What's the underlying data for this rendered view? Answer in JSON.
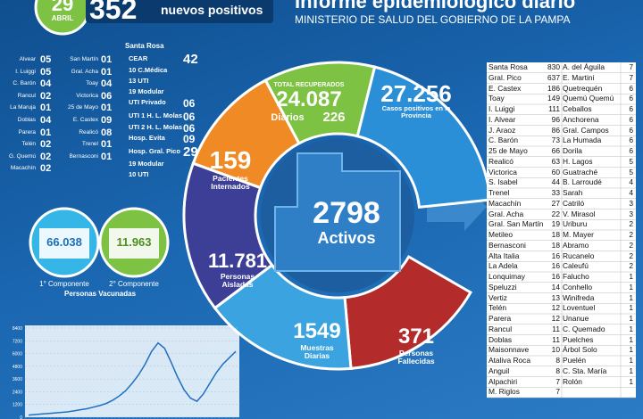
{
  "header": {
    "day": "29",
    "month": "ABRIL",
    "new_cases": "352",
    "new_cases_label": "nuevos positivos",
    "title": "Informe epidemiológico diario",
    "subtitle": "MINISTERIO DE SALUD DEL GOBIERNO DE LA PAMPA"
  },
  "localities": {
    "col1": [
      [
        "Alvear",
        "05"
      ],
      [
        "I. Luiggi",
        "05"
      ],
      [
        "C. Barón",
        "04"
      ],
      [
        "Rancul",
        "02"
      ],
      [
        "La Maruja",
        "01"
      ],
      [
        "Doblas",
        "04"
      ],
      [
        "Parera",
        "01"
      ],
      [
        "Telén",
        "02"
      ],
      [
        "G. Quemú",
        "02"
      ],
      [
        "Macachín",
        "02"
      ]
    ],
    "col2": [
      [
        "San Martín",
        "01"
      ],
      [
        "Gral. Acha",
        "01"
      ],
      [
        "Toay",
        "04"
      ],
      [
        "Victorica",
        "06"
      ],
      [
        "25 de Mayo",
        "01"
      ],
      [
        "E. Castex",
        "09"
      ],
      [
        "Realicó",
        "08"
      ],
      [
        "Trenel",
        "01"
      ],
      [
        "Bernasconi",
        "01"
      ]
    ]
  },
  "hospitals": {
    "title": "Santa Rosa",
    "rows": [
      {
        "label": "CEAR",
        "value": "42"
      },
      {
        "label": "10 C.Médica"
      },
      {
        "label": "13 UTI"
      },
      {
        "label": "19 Modular"
      },
      {
        "label": "UTI Privado",
        "value": "06"
      },
      {
        "label": "UTI 1 H. L. Molas",
        "value": "06"
      },
      {
        "label": "UTI 2 H. L. Molas",
        "value": "06"
      },
      {
        "label": "Hosp. Evita",
        "value": "09"
      },
      {
        "label": "Hosp. Gral. Pico",
        "value": "29"
      },
      {
        "label": "19 Modular"
      },
      {
        "label": "10 UTI"
      }
    ]
  },
  "summary": {
    "recovered_label": "TOTAL RECUPERADOS",
    "recovered": "24.087",
    "daily_label": "Diarios",
    "daily_recovered": "226",
    "cases": "27.256",
    "cases_label": "Casos positivos en la Provincia",
    "hospitalized": "159",
    "hospitalized_label": "Pacientes Internados",
    "isolated": "11.781",
    "isolated_label": "Personas Aisladas",
    "samples": "1549",
    "samples_label": "Muestras Diarias",
    "deaths": "371",
    "deaths_label": "Personas Fallecidas",
    "active": "2798",
    "active_label": "Activos"
  },
  "vaccination": {
    "first": "66.038",
    "first_label": "1° Componente",
    "second": "11.963",
    "second_label": "2° Componente",
    "label": "Personas Vacunadas"
  },
  "table": {
    "left": [
      [
        "Santa Rosa",
        830
      ],
      [
        "Gral. Pico",
        637
      ],
      [
        "E. Castex",
        186
      ],
      [
        "Toay",
        149
      ],
      [
        "I. Luiggi",
        111
      ],
      [
        "I. Alvear",
        96
      ],
      [
        "J. Araoz",
        86
      ],
      [
        "C. Barón",
        73
      ],
      [
        "25 de Mayo",
        66
      ],
      [
        "Realicó",
        63
      ],
      [
        "Victorica",
        60
      ],
      [
        "S. Isabel",
        44
      ],
      [
        "Trenel",
        33
      ],
      [
        "Macachín",
        27
      ],
      [
        "Gral. Acha",
        22
      ],
      [
        "Gral. San Martín",
        19
      ],
      [
        "Metileo",
        18
      ],
      [
        "Bernasconi",
        18
      ],
      [
        "Alta Italia",
        16
      ],
      [
        "La Adela",
        16
      ],
      [
        "Lonquimay",
        16
      ],
      [
        "Speluzzi",
        14
      ],
      [
        "Vertiz",
        13
      ],
      [
        "Telén",
        12
      ],
      [
        "Parera",
        12
      ],
      [
        "Rancul",
        11
      ],
      [
        "Doblas",
        11
      ],
      [
        "Maisonnave",
        10
      ],
      [
        "Ataliva Roca",
        8
      ],
      [
        "Anguil",
        8
      ],
      [
        "Alpachiri",
        7
      ],
      [
        "M. Riglos",
        7
      ]
    ],
    "right": [
      [
        "A. del Águila",
        7
      ],
      [
        "E. Martini",
        7
      ],
      [
        "Quetrequén",
        6
      ],
      [
        "Quemú Quemú",
        6
      ],
      [
        "Ceballos",
        6
      ],
      [
        "Anchorena",
        6
      ],
      [
        "Gral. Campos",
        6
      ],
      [
        "La Humada",
        6
      ],
      [
        "Dorila",
        6
      ],
      [
        "H. Lagos",
        5
      ],
      [
        "Guatraché",
        5
      ],
      [
        "B. Larroudé",
        4
      ],
      [
        "Sarah",
        4
      ],
      [
        "Catriló",
        3
      ],
      [
        "V. Mirasol",
        3
      ],
      [
        "Uriburu",
        2
      ],
      [
        "M. Mayer",
        2
      ],
      [
        "Abramo",
        2
      ],
      [
        "Rucanelo",
        2
      ],
      [
        "Caleufú",
        2
      ],
      [
        "Falucho",
        1
      ],
      [
        "Conhello",
        1
      ],
      [
        "Winifreda",
        1
      ],
      [
        "Loventuel",
        1
      ],
      [
        "Unanue",
        1
      ],
      [
        "C. Quemado",
        1
      ],
      [
        "Puelches",
        1
      ],
      [
        "Árbol Solo",
        1
      ],
      [
        "Puelén",
        1
      ],
      [
        "C. Sta. María",
        1
      ],
      [
        "Rolón",
        1
      ]
    ]
  },
  "chart_data": {
    "type": "line",
    "color": "#1e6fc0",
    "values": [
      200,
      250,
      300,
      350,
      400,
      450,
      500,
      600,
      700,
      800,
      950,
      1100,
      1300,
      1600,
      2000,
      2500,
      3200,
      4000,
      5000,
      6200,
      7000,
      6500,
      5200,
      3800,
      2600,
      1800,
      1500,
      2200,
      3200,
      4200,
      5000,
      5600,
      6200
    ],
    "ylim": [
      0,
      8400
    ],
    "yticks": [
      0,
      1200,
      2400,
      3600,
      4800,
      6000,
      7200,
      8400
    ],
    "grid": true
  }
}
